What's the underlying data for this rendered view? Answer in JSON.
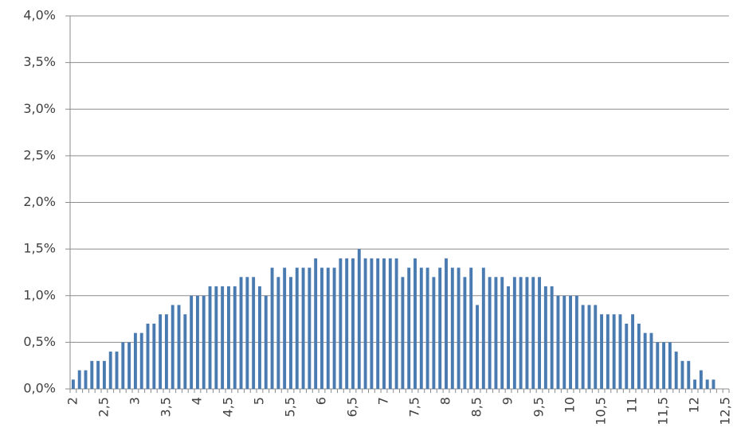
{
  "chart_data": {
    "type": "bar",
    "categories": [
      "2",
      null,
      null,
      null,
      null,
      "2,5",
      null,
      null,
      null,
      null,
      "3",
      null,
      null,
      null,
      null,
      "3,5",
      null,
      null,
      null,
      null,
      "4",
      null,
      null,
      null,
      null,
      "4,5",
      null,
      null,
      null,
      null,
      "5",
      null,
      null,
      null,
      null,
      "5,5",
      null,
      null,
      null,
      null,
      "6",
      null,
      null,
      null,
      null,
      "6,5",
      null,
      null,
      null,
      null,
      "7",
      null,
      null,
      null,
      null,
      "7,5",
      null,
      null,
      null,
      null,
      "8",
      null,
      null,
      null,
      null,
      "8,5",
      null,
      null,
      null,
      null,
      "9",
      null,
      null,
      null,
      null,
      "9,5",
      null,
      null,
      null,
      null,
      "10",
      null,
      null,
      null,
      null,
      "10,5",
      null,
      null,
      null,
      null,
      "11",
      null,
      null,
      null,
      null,
      "11,5",
      null,
      null,
      null,
      null,
      "12",
      null,
      null,
      null,
      null,
      "12,5"
    ],
    "values": [
      0.1,
      0.2,
      0.2,
      0.3,
      0.3,
      0.3,
      0.4,
      0.4,
      0.5,
      0.5,
      0.6,
      0.6,
      0.7,
      0.7,
      0.8,
      0.8,
      0.9,
      0.9,
      0.8,
      1.0,
      1.0,
      1.0,
      1.1,
      1.1,
      1.1,
      1.1,
      1.1,
      1.2,
      1.2,
      1.2,
      1.1,
      1.0,
      1.3,
      1.2,
      1.3,
      1.2,
      1.3,
      1.3,
      1.3,
      1.4,
      1.3,
      1.3,
      1.3,
      1.4,
      1.4,
      1.4,
      1.5,
      1.4,
      1.4,
      1.4,
      1.4,
      1.4,
      1.4,
      1.2,
      1.3,
      1.4,
      1.3,
      1.3,
      1.2,
      1.3,
      1.4,
      1.3,
      1.3,
      1.2,
      1.3,
      0.9,
      1.3,
      1.2,
      1.2,
      1.2,
      1.1,
      1.2,
      1.2,
      1.2,
      1.2,
      1.2,
      1.1,
      1.1,
      1.0,
      1.0,
      1.0,
      1.0,
      0.9,
      0.9,
      0.9,
      0.8,
      0.8,
      0.8,
      0.8,
      0.7,
      0.8,
      0.7,
      0.6,
      0.6,
      0.5,
      0.5,
      0.5,
      0.4,
      0.3,
      0.3,
      0.1,
      0.2,
      0.1,
      0.1,
      0,
      0
    ],
    "color": "#4a7bb0",
    "ylim": [
      0,
      4
    ],
    "yticks": [
      {
        "value": 0,
        "label": "0,0%"
      },
      {
        "value": 0.5,
        "label": "0,5%"
      },
      {
        "value": 1,
        "label": "1,0%"
      },
      {
        "value": 1.5,
        "label": "1,5%"
      },
      {
        "value": 2,
        "label": "2,0%"
      },
      {
        "value": 2.5,
        "label": "2,5%"
      },
      {
        "value": 3,
        "label": "3,0%"
      },
      {
        "value": 3.5,
        "label": "3,5%"
      },
      {
        "value": 4,
        "label": "4,0%"
      }
    ],
    "grid": true
  }
}
